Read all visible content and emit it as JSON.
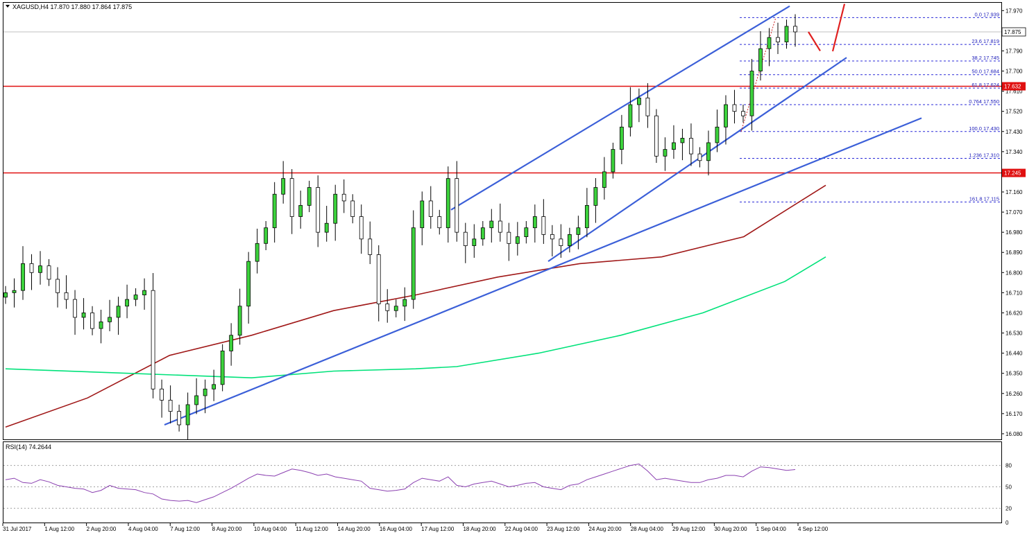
{
  "chart_data": [
    {
      "type": "candlestick",
      "title": "XAGUSD,H4  17.870 17.880 17.864 17.875",
      "ylim": [
        16.055,
        18.005
      ],
      "y_ticks": [
        "17.970",
        "17.880",
        "17.790",
        "17.700",
        "17.610",
        "17.520",
        "17.430",
        "17.340",
        "17.250",
        "17.160",
        "17.070",
        "16.980",
        "16.890",
        "16.800",
        "16.710",
        "16.620",
        "16.530",
        "16.440",
        "16.350",
        "16.260",
        "16.170",
        "16.080"
      ],
      "x_labels": [
        "31 Jul 2017",
        "1 Aug 12:00",
        "2 Aug 20:00",
        "4 Aug 04:00",
        "7 Aug 12:00",
        "8 Aug 20:00",
        "10 Aug 04:00",
        "11 Aug 12:00",
        "14 Aug 20:00",
        "16 Aug 04:00",
        "17 Aug 12:00",
        "18 Aug 20:00",
        "22 Aug 04:00",
        "23 Aug 12:00",
        "24 Aug 20:00",
        "28 Aug 04:00",
        "29 Aug 12:00",
        "30 Aug 20:00",
        "1 Sep 04:00",
        "4 Sep 12:00"
      ],
      "current_price": {
        "label": "17.875",
        "value": 17.875
      },
      "resistance_levels": [
        {
          "value": 17.632,
          "label": "17.632"
        },
        {
          "value": 17.245,
          "label": "17.245"
        }
      ],
      "fibonacci_levels": [
        {
          "label": "0.0 17.939",
          "value": 17.939
        },
        {
          "label": "23.6 17.819",
          "value": 17.819
        },
        {
          "label": "38.2 17.745",
          "value": 17.745
        },
        {
          "label": "50.0 17.684",
          "value": 17.684
        },
        {
          "label": "61.8 17.624",
          "value": 17.624
        },
        {
          "label": "0.764 17.550",
          "value": 17.55
        },
        {
          "label": "100.0 17.430",
          "value": 17.43
        },
        {
          "label": "1.236 17.310",
          "value": 17.31
        },
        {
          "label": "161.8 17.115",
          "value": 17.115
        }
      ],
      "close_path": [
        16.71,
        16.72,
        16.84,
        16.8,
        16.83,
        16.77,
        16.71,
        16.68,
        16.6,
        16.62,
        16.55,
        16.58,
        16.6,
        16.65,
        16.68,
        16.7,
        16.72,
        16.28,
        16.23,
        16.18,
        16.12,
        16.21,
        16.25,
        16.28,
        16.3,
        16.45,
        16.52,
        16.65,
        16.85,
        16.93,
        17.0,
        17.15,
        17.22,
        17.05,
        17.1,
        17.18,
        16.98,
        17.02,
        17.15,
        17.12,
        17.05,
        16.95,
        16.88,
        16.66,
        16.63,
        16.65,
        16.68,
        17.0,
        17.12,
        17.05,
        17.0,
        17.22,
        16.98,
        16.92,
        16.95,
        17.0,
        17.03,
        16.98,
        16.93,
        16.96,
        17.0,
        17.05,
        16.97,
        16.95,
        16.92,
        16.97,
        17.0,
        17.1,
        17.18,
        17.25,
        17.35,
        17.45,
        17.55,
        17.58,
        17.5,
        17.32,
        17.35,
        17.38,
        17.4,
        17.33,
        17.3,
        17.38,
        17.45,
        17.55,
        17.52,
        17.5,
        17.7,
        17.8,
        17.85,
        17.83,
        17.9,
        17.875
      ],
      "series": [
        {
          "name": "MA red",
          "color": "#a01818",
          "x": [
            0.0,
            0.1,
            0.2,
            0.3,
            0.4,
            0.5,
            0.6,
            0.7,
            0.8,
            0.9,
            1.0
          ],
          "values": [
            16.11,
            16.24,
            16.43,
            16.52,
            16.63,
            16.7,
            16.78,
            16.84,
            16.87,
            16.96,
            17.19
          ]
        },
        {
          "name": "MA green",
          "color": "#00e27a",
          "x": [
            0.0,
            0.15,
            0.3,
            0.4,
            0.5,
            0.55,
            0.65,
            0.75,
            0.85,
            0.95,
            1.0
          ],
          "values": [
            16.37,
            16.35,
            16.33,
            16.36,
            16.37,
            16.38,
            16.44,
            16.52,
            16.62,
            16.76,
            16.87
          ]
        }
      ],
      "trend_lines": [
        {
          "name": "channel upper",
          "color": "#3b5fd8",
          "points": [
            [
              0.0,
              17.08
            ],
            [
              1.0,
              17.99
            ]
          ]
        },
        {
          "name": "channel lower",
          "color": "#3b5fd8",
          "points": [
            [
              0.0,
              16.85
            ],
            [
              1.0,
              17.76
            ]
          ]
        },
        {
          "name": "support long",
          "color": "#3b5fd8",
          "points": [
            [
              0.0,
              16.12
            ],
            [
              1.0,
              17.49
            ]
          ]
        }
      ],
      "fib_swing": {
        "from": 17.43,
        "to": 17.939,
        "color": "#cc2222"
      },
      "projection_arrow": {
        "color": "#e02020",
        "down_to": 17.79,
        "up_to": 18.0
      }
    },
    {
      "type": "line",
      "title": "RSI(14) 74.2644",
      "ylim": [
        0,
        100
      ],
      "y_ticks": [
        "80",
        "50",
        "20",
        "0"
      ],
      "levels": [
        80,
        50,
        20
      ],
      "color": "#8a3fb0",
      "values": [
        60,
        62,
        56,
        55,
        60,
        57,
        52,
        50,
        48,
        47,
        42,
        45,
        52,
        48,
        47,
        46,
        42,
        40,
        33,
        31,
        30,
        31,
        28,
        32,
        36,
        42,
        48,
        55,
        62,
        68,
        66,
        65,
        70,
        75,
        73,
        70,
        66,
        68,
        64,
        62,
        60,
        58,
        48,
        46,
        44,
        45,
        47,
        56,
        62,
        60,
        58,
        64,
        52,
        50,
        54,
        56,
        58,
        54,
        50,
        52,
        55,
        56,
        50,
        48,
        46,
        52,
        54,
        60,
        64,
        68,
        72,
        76,
        80,
        82,
        72,
        60,
        62,
        60,
        58,
        56,
        56,
        60,
        62,
        66,
        66,
        64,
        72,
        78,
        77,
        75,
        73,
        74.26
      ]
    }
  ]
}
